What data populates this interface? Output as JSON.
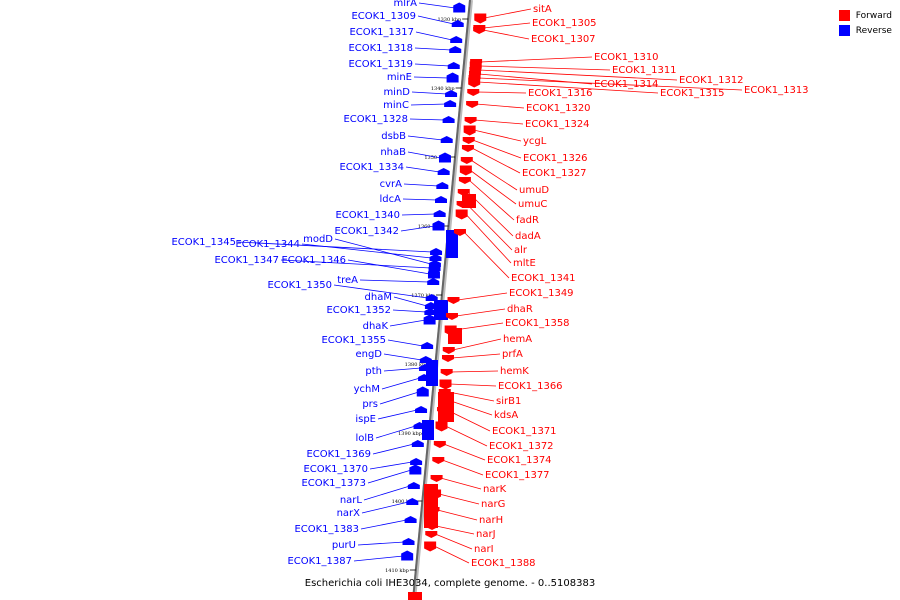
{
  "legend": {
    "forward_label": "Forward",
    "reverse_label": "Reverse",
    "forward_color": "#ff0000",
    "reverse_color": "#0000ff"
  },
  "caption": "Escherichia coli IHE3034, complete genome. - 0..5108383",
  "ticks": [
    "1330 kbp",
    "1340 kbp",
    "1350 kbp",
    "1360 kbp",
    "1370 kbp",
    "1380 kbp",
    "1390 kbp",
    "1400 kbp",
    "1410 kbp"
  ],
  "reverse_genes": [
    "mlrA",
    "ECOK1_1309",
    "ECOK1_1317",
    "ECOK1_1318",
    "ECOK1_1319",
    "minE",
    "minD",
    "minC",
    "ECOK1_1328",
    "dsbB",
    "nhaB",
    "ECOK1_1334",
    "cvrA",
    "ldcA",
    "ECOK1_1340",
    "ECOK1_1342",
    "ECOK1_1345",
    "ECOK1_1344",
    "modD",
    "ECOK1_1347",
    "ECOK1_1346",
    "treA",
    "ECOK1_1350",
    "dhaM",
    "ECOK1_1352",
    "dhaK",
    "ECOK1_1355",
    "engD",
    "pth",
    "ychM",
    "prs",
    "ispE",
    "lolB",
    "ECOK1_1369",
    "ECOK1_1370",
    "ECOK1_1373",
    "narL",
    "narX",
    "ECOK1_1383",
    "purU",
    "ECOK1_1387"
  ],
  "forward_genes": [
    "sitA",
    "ECOK1_1305",
    "ECOK1_1307",
    "ECOK1_1310",
    "ECOK1_1311",
    "ECOK1_1312",
    "ECOK1_1314",
    "ECOK1_1313",
    "ECOK1_1315",
    "ECOK1_1316",
    "ECOK1_1320",
    "ECOK1_1324",
    "ycgL",
    "ECOK1_1326",
    "ECOK1_1327",
    "umuD",
    "umuC",
    "fadR",
    "dadA",
    "alr",
    "mltE",
    "ECOK1_1341",
    "ECOK1_1349",
    "dhaR",
    "ECOK1_1358",
    "hemA",
    "prfA",
    "hemK",
    "ECOK1_1366",
    "sirB1",
    "kdsA",
    "ECOK1_1371",
    "ECOK1_1372",
    "ECOK1_1374",
    "ECOK1_1377",
    "narK",
    "narG",
    "narH",
    "narJ",
    "narI",
    "ECOK1_1388"
  ]
}
